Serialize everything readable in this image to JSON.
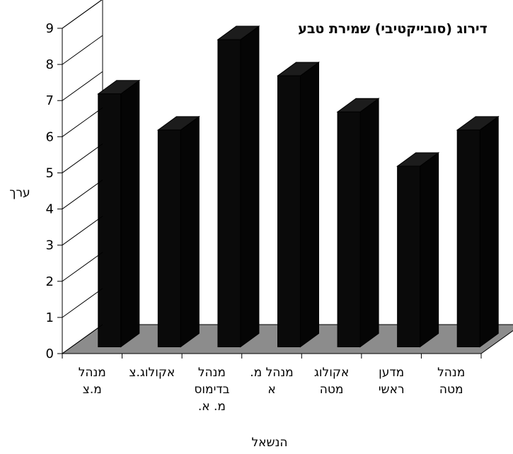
{
  "chart_data": {
    "type": "bar",
    "style": "3d-column",
    "title": "דירוג (סובייקטיבי) שמירת טבע",
    "xlabel": "הנשאל",
    "ylabel": "ערך",
    "ylim": [
      0,
      9
    ],
    "yticks": [
      "0",
      "1",
      "2",
      "3",
      "4",
      "5",
      "6",
      "7",
      "8",
      "9"
    ],
    "categories": [
      [
        "מנהל",
        "מ.צ"
      ],
      [
        "אקולוג.צ"
      ],
      [
        "מנהל",
        "בדימוס",
        "מ. א."
      ],
      [
        "מנהל מ.",
        "א"
      ],
      [
        "אקולוג",
        "מטה"
      ],
      [
        "מדען",
        "ראשי"
      ],
      [
        "מנהל",
        "מטה"
      ]
    ],
    "values": [
      7,
      6,
      8.5,
      7.5,
      6.5,
      5,
      6
    ],
    "grid": false,
    "colors": {
      "bar_front": "#0a0a0a",
      "bar_top": "#1c1c1c",
      "bar_side": "#050505",
      "floor": "#8c8c8c",
      "axis": "#000000"
    }
  }
}
